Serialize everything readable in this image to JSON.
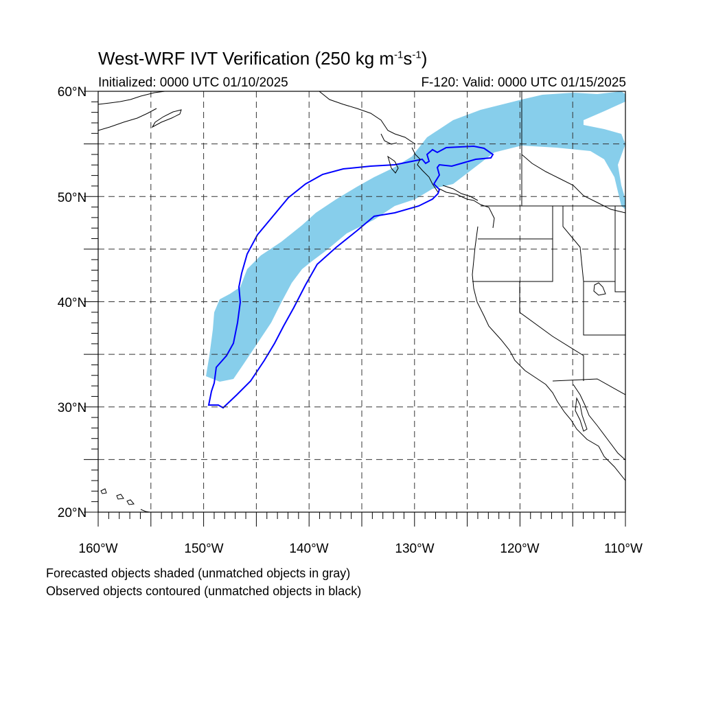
{
  "title": {
    "main": "West-WRF IVT Verification (250 kg m",
    "sup1": "-1",
    "mid": "s",
    "sup2": "-1",
    "close": ")"
  },
  "subtitle": {
    "initialized": "Initialized: 0000 UTC 01/10/2025",
    "valid": "F-120: Valid: 0000 UTC 01/15/2025"
  },
  "map": {
    "projection": "cylindrical equidistant",
    "lon_range": [
      -160,
      -110
    ],
    "lat_range": [
      20,
      60
    ],
    "grid": "dashed every 5 degrees",
    "lat_labels": [
      "60°N",
      "50°N",
      "40°N",
      "30°N",
      "20°N"
    ],
    "lon_labels": [
      "160°W",
      "150°W",
      "140°W",
      "130°W",
      "120°W",
      "110°W"
    ],
    "forecast_fill_color": "#87CEEB",
    "observed_contour_color": "#0000ff"
  },
  "caption": {
    "line1": "Forecasted objects shaded (unmatched objects in gray)",
    "line2": "Observed objects contoured (unmatched objects in black)"
  }
}
